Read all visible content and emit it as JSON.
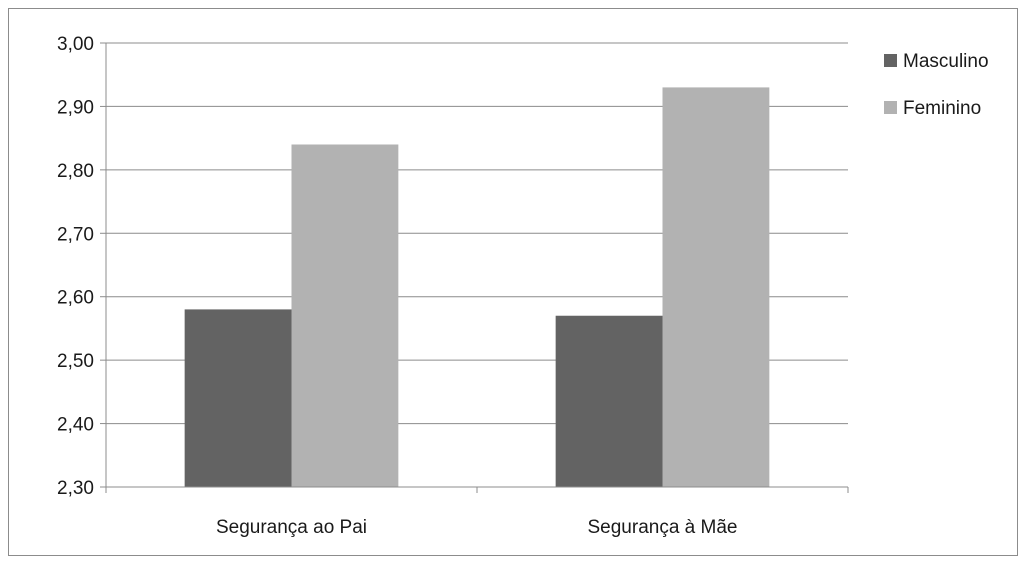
{
  "chart_data": {
    "type": "bar",
    "categories": [
      "Segurança ao Pai",
      "Segurança à Mãe"
    ],
    "series": [
      {
        "name": "Masculino",
        "values": [
          2.58,
          2.57
        ],
        "color": "#636363"
      },
      {
        "name": "Feminino",
        "values": [
          2.84,
          2.93
        ],
        "color": "#b2b2b2"
      }
    ],
    "ylim": [
      2.3,
      3.0
    ],
    "yticks": [
      "2,30",
      "2,40",
      "2,50",
      "2,60",
      "2,70",
      "2,80",
      "2,90",
      "3,00"
    ],
    "grid": true,
    "legend": "right"
  }
}
